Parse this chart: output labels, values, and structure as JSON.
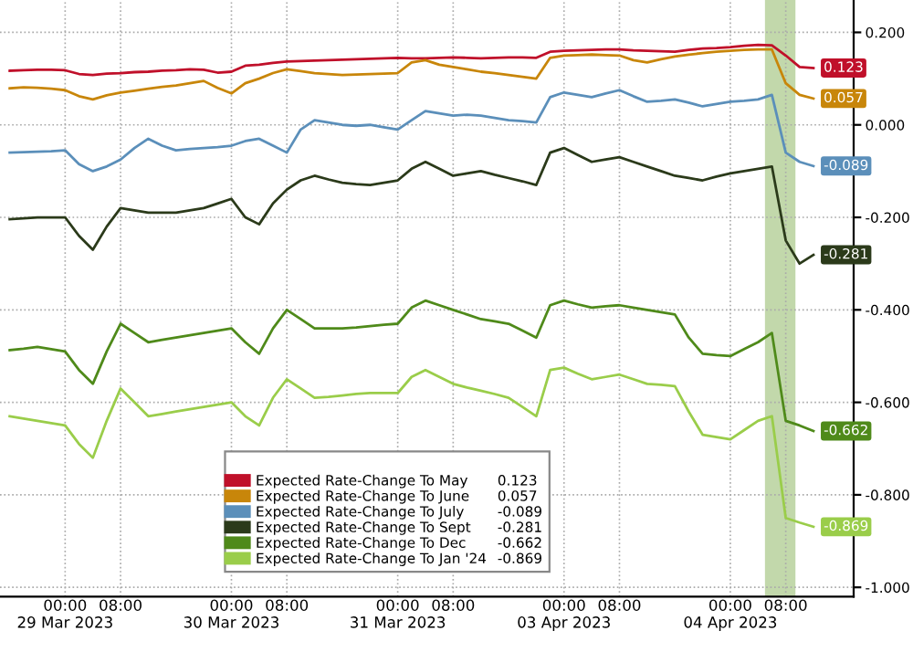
{
  "chart_data": {
    "type": "line",
    "categories": [
      null,
      null,
      null,
      null,
      "00:00\n29 Mar 2023",
      null,
      null,
      null,
      "08:00",
      null,
      null,
      null,
      null,
      null,
      null,
      null,
      "00:00\n30 Mar 2023",
      null,
      null,
      null,
      "08:00",
      null,
      null,
      null,
      null,
      null,
      null,
      null,
      "00:00\n31 Mar 2023",
      null,
      null,
      null,
      "08:00",
      null,
      null,
      null,
      null,
      null,
      null,
      null,
      "00:00\n03 Apr 2023",
      null,
      null,
      null,
      "08:00",
      null,
      null,
      null,
      null,
      null,
      null,
      null,
      "00:00\n04 Apr 2023",
      null,
      null,
      null,
      "08:00",
      null,
      null
    ],
    "series": [
      {
        "name": "Expected Rate-Change To May",
        "color": "#c0102a",
        "values": [
          0.117,
          0.118,
          0.119,
          0.119,
          0.118,
          0.11,
          0.108,
          0.111,
          0.112,
          0.114,
          0.115,
          0.117,
          0.118,
          0.12,
          0.119,
          0.113,
          0.115,
          0.128,
          0.13,
          0.134,
          0.137,
          0.138,
          0.139,
          0.14,
          0.141,
          0.142,
          0.143,
          0.144,
          0.145,
          0.144,
          0.144,
          0.145,
          0.146,
          0.145,
          0.144,
          0.145,
          0.146,
          0.146,
          0.145,
          0.158,
          0.16,
          0.161,
          0.162,
          0.163,
          0.163,
          0.161,
          0.16,
          0.159,
          0.158,
          0.162,
          0.165,
          0.166,
          0.168,
          0.171,
          0.173,
          0.172,
          0.15,
          0.125,
          0.123
        ],
        "value_labels": [
          null,
          null,
          null,
          null,
          null,
          null,
          null,
          null,
          null,
          null,
          null,
          null,
          null,
          null,
          null,
          null,
          null,
          null,
          null,
          null,
          null,
          null,
          null,
          null,
          null,
          null,
          null,
          null,
          null,
          null,
          null,
          null,
          null,
          null,
          null,
          null,
          null,
          null,
          null,
          null,
          null,
          null,
          null,
          null,
          null,
          null,
          null,
          null,
          null,
          null,
          null,
          null,
          null,
          null,
          null,
          null,
          null,
          null,
          "0.123"
        ]
      },
      {
        "name": "Expected Rate-Change To June",
        "color": "#c8860a",
        "values": [
          0.079,
          0.081,
          0.08,
          0.078,
          0.075,
          0.062,
          0.055,
          0.064,
          0.07,
          0.074,
          0.078,
          0.082,
          0.085,
          0.09,
          0.095,
          0.08,
          0.068,
          0.09,
          0.1,
          0.112,
          0.12,
          0.116,
          0.112,
          0.11,
          0.108,
          0.109,
          0.11,
          0.111,
          0.112,
          0.135,
          0.14,
          0.13,
          0.125,
          0.12,
          0.115,
          0.112,
          0.108,
          0.104,
          0.1,
          0.145,
          0.15,
          0.151,
          0.152,
          0.151,
          0.15,
          0.14,
          0.135,
          0.142,
          0.148,
          0.152,
          0.155,
          0.158,
          0.16,
          0.162,
          0.163,
          0.163,
          0.09,
          0.065,
          0.057
        ],
        "value_labels": [
          null,
          null,
          null,
          null,
          null,
          null,
          null,
          null,
          null,
          null,
          null,
          null,
          null,
          null,
          null,
          null,
          null,
          null,
          null,
          null,
          null,
          null,
          null,
          null,
          null,
          null,
          null,
          null,
          null,
          null,
          null,
          null,
          null,
          null,
          null,
          null,
          null,
          null,
          null,
          null,
          null,
          null,
          null,
          null,
          null,
          null,
          null,
          null,
          null,
          null,
          null,
          null,
          null,
          null,
          null,
          null,
          null,
          null,
          "0.057"
        ]
      },
      {
        "name": "Expected Rate-Change To July",
        "color": "#5b8fba",
        "values": [
          -0.06,
          -0.059,
          -0.058,
          -0.057,
          -0.055,
          -0.085,
          -0.1,
          -0.09,
          -0.075,
          -0.05,
          -0.03,
          -0.045,
          -0.055,
          -0.052,
          -0.05,
          -0.048,
          -0.045,
          -0.035,
          -0.03,
          -0.045,
          -0.06,
          -0.01,
          0.01,
          0.005,
          0.0,
          -0.002,
          0.0,
          -0.005,
          -0.01,
          0.01,
          0.03,
          0.025,
          0.02,
          0.022,
          0.02,
          0.015,
          0.01,
          0.008,
          0.005,
          0.06,
          0.07,
          0.065,
          0.06,
          0.068,
          0.075,
          0.062,
          0.05,
          0.052,
          0.055,
          0.048,
          0.04,
          0.045,
          0.05,
          0.052,
          0.055,
          0.065,
          -0.06,
          -0.08,
          -0.089
        ],
        "value_labels": [
          null,
          null,
          null,
          null,
          null,
          null,
          null,
          null,
          null,
          null,
          null,
          null,
          null,
          null,
          null,
          null,
          null,
          null,
          null,
          null,
          null,
          null,
          null,
          null,
          null,
          null,
          null,
          null,
          null,
          null,
          null,
          null,
          null,
          null,
          null,
          null,
          null,
          null,
          null,
          null,
          null,
          null,
          null,
          null,
          null,
          null,
          null,
          null,
          null,
          null,
          null,
          null,
          null,
          null,
          null,
          null,
          null,
          null,
          "-0.089"
        ]
      },
      {
        "name": "Expected Rate-Change To Sept",
        "color": "#2b3a1a",
        "values": [
          -0.204,
          -0.202,
          -0.2,
          -0.2,
          -0.2,
          -0.24,
          -0.27,
          -0.22,
          -0.18,
          -0.185,
          -0.19,
          -0.19,
          -0.19,
          -0.185,
          -0.18,
          -0.17,
          -0.16,
          -0.2,
          -0.215,
          -0.17,
          -0.14,
          -0.12,
          -0.11,
          -0.118,
          -0.125,
          -0.128,
          -0.13,
          -0.125,
          -0.12,
          -0.095,
          -0.08,
          -0.095,
          -0.11,
          -0.105,
          -0.1,
          -0.108,
          -0.115,
          -0.122,
          -0.13,
          -0.06,
          -0.05,
          -0.065,
          -0.08,
          -0.075,
          -0.07,
          -0.08,
          -0.09,
          -0.1,
          -0.11,
          -0.115,
          -0.12,
          -0.112,
          -0.105,
          -0.1,
          -0.095,
          -0.09,
          -0.25,
          -0.3,
          -0.281
        ],
        "value_labels": [
          null,
          null,
          null,
          null,
          null,
          null,
          null,
          null,
          null,
          null,
          null,
          null,
          null,
          null,
          null,
          null,
          null,
          null,
          null,
          null,
          null,
          null,
          null,
          null,
          null,
          null,
          null,
          null,
          null,
          null,
          null,
          null,
          null,
          null,
          null,
          null,
          null,
          null,
          null,
          null,
          null,
          null,
          null,
          null,
          null,
          null,
          null,
          null,
          null,
          null,
          null,
          null,
          null,
          null,
          null,
          null,
          null,
          null,
          "-0.281"
        ]
      },
      {
        "name": "Expected Rate-Change To Dec",
        "color": "#4f8a1a",
        "values": [
          -0.487,
          -0.484,
          -0.48,
          -0.485,
          -0.49,
          -0.53,
          -0.56,
          -0.49,
          -0.43,
          -0.45,
          -0.47,
          -0.465,
          -0.46,
          -0.455,
          -0.45,
          -0.445,
          -0.44,
          -0.47,
          -0.495,
          -0.44,
          -0.4,
          -0.42,
          -0.44,
          -0.44,
          -0.44,
          -0.438,
          -0.435,
          -0.432,
          -0.43,
          -0.395,
          -0.38,
          -0.39,
          -0.4,
          -0.41,
          -0.42,
          -0.425,
          -0.43,
          -0.445,
          -0.46,
          -0.39,
          -0.38,
          -0.388,
          -0.395,
          -0.392,
          -0.39,
          -0.395,
          -0.4,
          -0.405,
          -0.41,
          -0.46,
          -0.495,
          -0.498,
          -0.5,
          -0.485,
          -0.47,
          -0.45,
          -0.64,
          -0.65,
          -0.662
        ],
        "value_labels": [
          null,
          null,
          null,
          null,
          null,
          null,
          null,
          null,
          null,
          null,
          null,
          null,
          null,
          null,
          null,
          null,
          null,
          null,
          null,
          null,
          null,
          null,
          null,
          null,
          null,
          null,
          null,
          null,
          null,
          null,
          null,
          null,
          null,
          null,
          null,
          null,
          null,
          null,
          null,
          null,
          null,
          null,
          null,
          null,
          null,
          null,
          null,
          null,
          null,
          null,
          null,
          null,
          null,
          null,
          null,
          null,
          null,
          null,
          "-0.662"
        ]
      },
      {
        "name": "Expected Rate-Change To Jan '24",
        "color": "#9acd4a",
        "values": [
          -0.63,
          -0.635,
          -0.64,
          -0.645,
          -0.65,
          -0.69,
          -0.72,
          -0.64,
          -0.57,
          -0.6,
          -0.63,
          -0.625,
          -0.62,
          -0.615,
          -0.61,
          -0.605,
          -0.6,
          -0.63,
          -0.65,
          -0.59,
          -0.55,
          -0.57,
          -0.59,
          -0.588,
          -0.585,
          -0.582,
          -0.58,
          -0.58,
          -0.58,
          -0.545,
          -0.53,
          -0.545,
          -0.56,
          -0.568,
          -0.575,
          -0.582,
          -0.59,
          -0.61,
          -0.63,
          -0.53,
          -0.525,
          -0.538,
          -0.55,
          -0.545,
          -0.54,
          -0.55,
          -0.56,
          -0.562,
          -0.565,
          -0.62,
          -0.67,
          -0.675,
          -0.68,
          -0.66,
          -0.64,
          -0.63,
          -0.85,
          -0.86,
          -0.869
        ],
        "value_labels": [
          null,
          null,
          null,
          null,
          null,
          null,
          null,
          null,
          null,
          null,
          null,
          null,
          null,
          null,
          null,
          null,
          null,
          null,
          null,
          null,
          null,
          null,
          null,
          null,
          null,
          null,
          null,
          null,
          null,
          null,
          null,
          null,
          null,
          null,
          null,
          null,
          null,
          null,
          null,
          null,
          null,
          null,
          null,
          null,
          null,
          null,
          null,
          null,
          null,
          null,
          null,
          null,
          null,
          null,
          null,
          null,
          null,
          null,
          "-0.869"
        ]
      }
    ],
    "ylim": [
      -1.02,
      0.27
    ],
    "yticks": [
      {
        "value": 0.2,
        "label": "0.200"
      },
      {
        "value": 0.0,
        "label": "0.000"
      },
      {
        "value": -0.2,
        "label": "-0.200"
      },
      {
        "value": -0.4,
        "label": "-0.400"
      },
      {
        "value": -0.6,
        "label": "-0.600"
      },
      {
        "value": -0.8,
        "label": "-0.800"
      },
      {
        "value": -1.0,
        "label": "-1.000"
      }
    ],
    "grid": true,
    "legend": "bottom",
    "line_style": "solid",
    "marker": "none"
  }
}
